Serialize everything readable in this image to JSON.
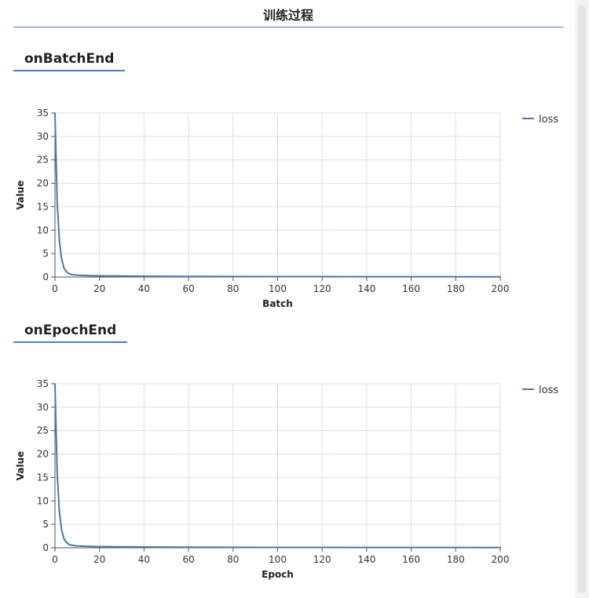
{
  "header": {
    "title": "训练过程"
  },
  "sections": [
    {
      "title": "onBatchEnd"
    },
    {
      "title": "onEpochEnd"
    }
  ],
  "colors": {
    "series": "#4c78a8",
    "accent": "#3f74c8",
    "grid": "#dddde8"
  },
  "chart_data": [
    {
      "type": "line",
      "title": "onBatchEnd",
      "xlabel": "Batch",
      "ylabel": "Value",
      "xlim": [
        0,
        200
      ],
      "ylim": [
        0,
        35
      ],
      "xticks": [
        0,
        20,
        40,
        60,
        80,
        100,
        120,
        140,
        160,
        180,
        200
      ],
      "yticks": [
        0,
        5,
        10,
        15,
        20,
        25,
        30,
        35
      ],
      "grid": true,
      "legend_position": "right",
      "series": [
        {
          "name": "loss",
          "x": [
            0,
            1,
            2,
            3,
            4,
            5,
            6,
            7,
            8,
            10,
            12,
            15,
            20,
            30,
            40,
            50,
            60,
            80,
            100,
            120,
            140,
            160,
            180,
            200
          ],
          "y": [
            35,
            16,
            7.5,
            3.8,
            2.0,
            1.2,
            0.8,
            0.6,
            0.5,
            0.4,
            0.35,
            0.3,
            0.25,
            0.2,
            0.17,
            0.15,
            0.13,
            0.1,
            0.09,
            0.08,
            0.07,
            0.06,
            0.06,
            0.05
          ]
        }
      ]
    },
    {
      "type": "line",
      "title": "onEpochEnd",
      "xlabel": "Epoch",
      "ylabel": "Value",
      "xlim": [
        0,
        200
      ],
      "ylim": [
        0,
        35
      ],
      "xticks": [
        0,
        20,
        40,
        60,
        80,
        100,
        120,
        140,
        160,
        180,
        200
      ],
      "yticks": [
        0,
        5,
        10,
        15,
        20,
        25,
        30,
        35
      ],
      "grid": true,
      "legend_position": "right",
      "series": [
        {
          "name": "loss",
          "x": [
            0,
            1,
            2,
            3,
            4,
            5,
            6,
            7,
            8,
            10,
            12,
            15,
            20,
            30,
            40,
            50,
            60,
            80,
            100,
            120,
            140,
            160,
            180,
            200
          ],
          "y": [
            35,
            16,
            7.5,
            3.8,
            2.0,
            1.2,
            0.8,
            0.6,
            0.5,
            0.4,
            0.35,
            0.3,
            0.25,
            0.2,
            0.17,
            0.15,
            0.13,
            0.1,
            0.09,
            0.08,
            0.07,
            0.06,
            0.06,
            0.05
          ]
        }
      ]
    }
  ]
}
